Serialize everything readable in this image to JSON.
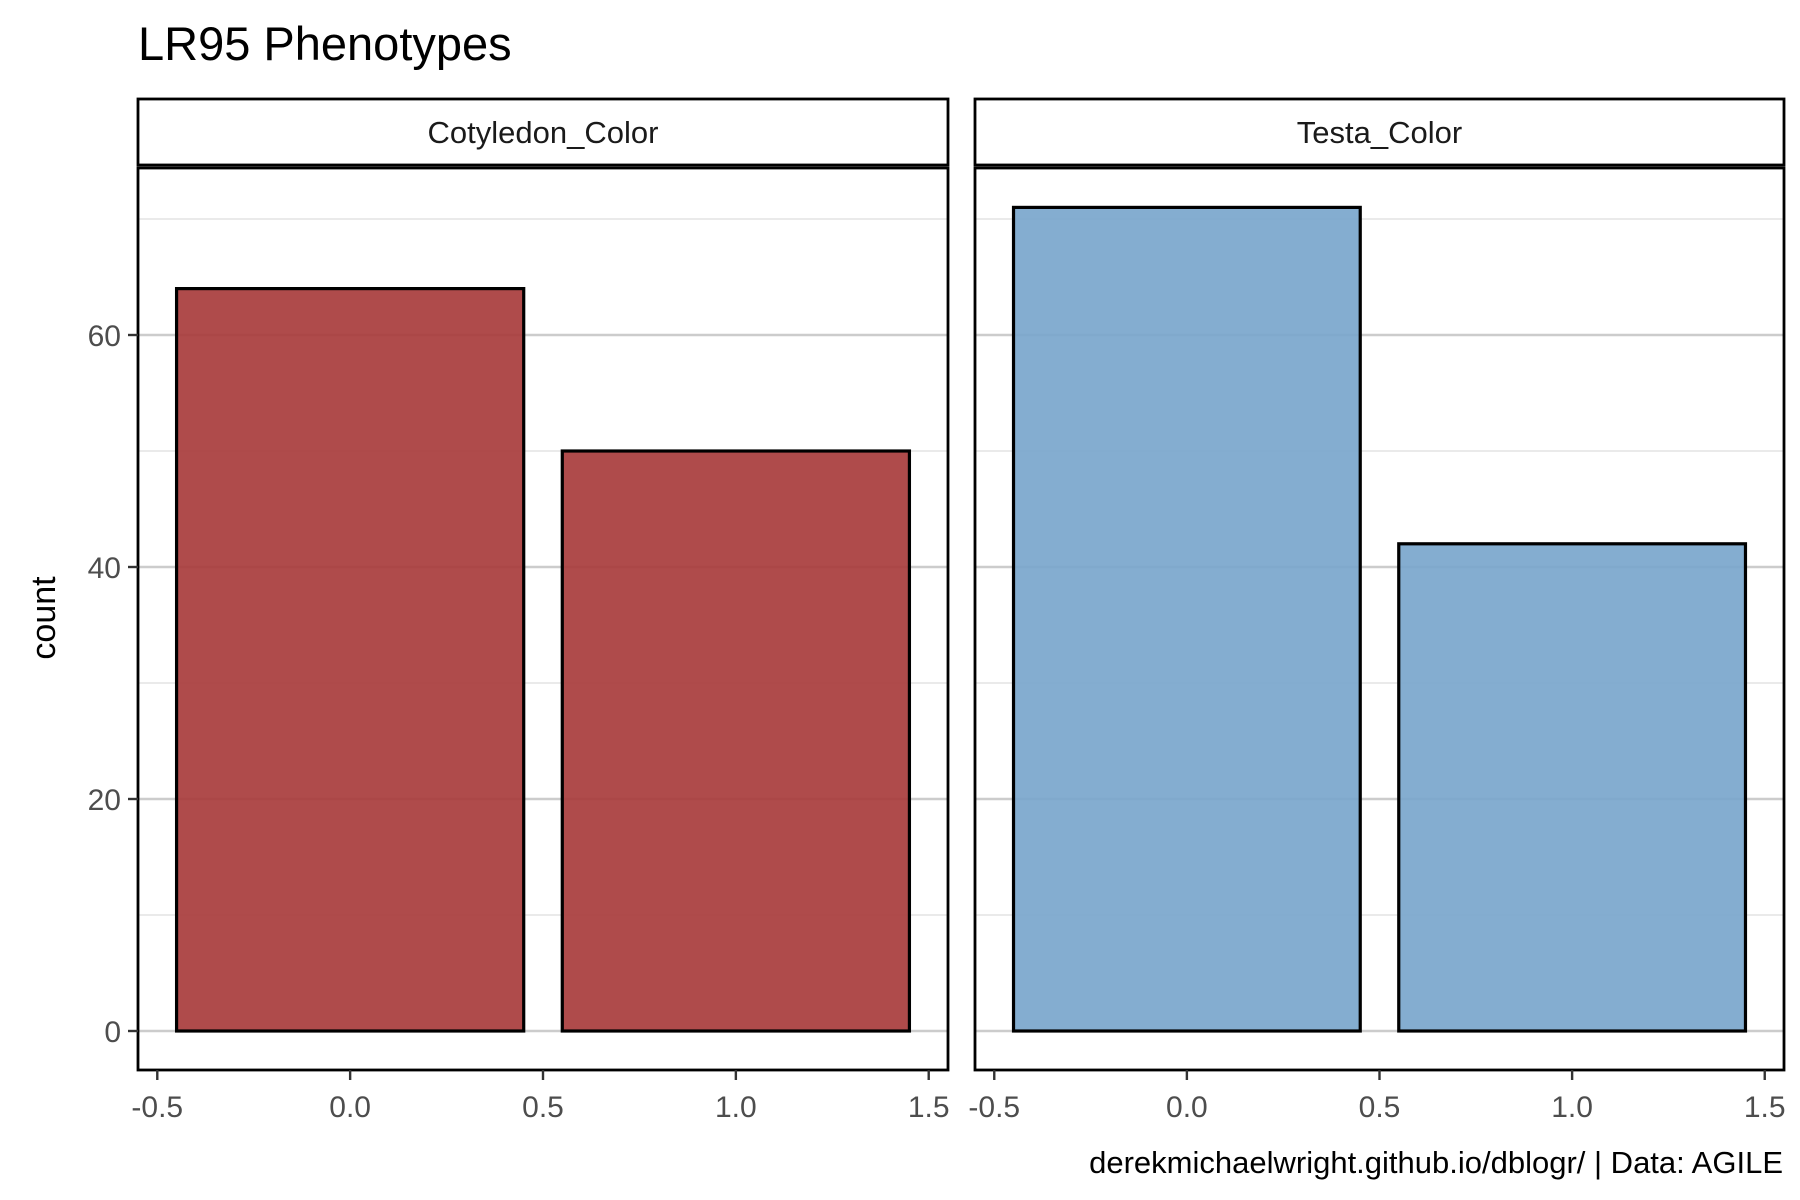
{
  "chart_data": {
    "type": "bar",
    "title": "LR95 Phenotypes",
    "ylabel": "count",
    "xlabel": "",
    "caption": "derekmichaelwright.github.io/dblogr/ | Data: AGILE",
    "xlim": [
      -0.5,
      1.5
    ],
    "ylim": [
      0,
      75
    ],
    "x_ticks": [
      -0.5,
      0.0,
      0.5,
      1.0,
      1.5
    ],
    "x_tick_labels": [
      "-0.5",
      "0.0",
      "0.5",
      "1.0",
      "1.5"
    ],
    "y_ticks": [
      0,
      20,
      40,
      60
    ],
    "y_tick_labels": [
      "0",
      "20",
      "40",
      "60"
    ],
    "y_minor_ticks": [
      10,
      30,
      50,
      70
    ],
    "grid": true,
    "legend": "none",
    "panels": [
      {
        "name": "Cotyledon_Color",
        "color": "#a83c3c",
        "x": [
          0,
          1
        ],
        "values": [
          64,
          50
        ]
      },
      {
        "name": "Testa_Color",
        "color": "#7aa6cc",
        "x": [
          0,
          1
        ],
        "values": [
          71,
          42
        ]
      }
    ]
  }
}
